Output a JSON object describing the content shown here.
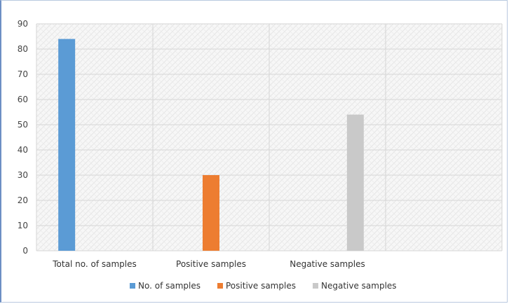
{
  "chart_data": {
    "type": "bar",
    "categories": [
      "Total no. of samples",
      "Positive samples",
      "Negative samples",
      ""
    ],
    "series": [
      {
        "name": "No. of samples",
        "values": [
          84,
          null,
          null,
          null
        ],
        "color": "#5b9bd5"
      },
      {
        "name": "Positive samples",
        "values": [
          null,
          30,
          null,
          null
        ],
        "color": "#ed7d31"
      },
      {
        "name": "Negative samples",
        "values": [
          null,
          null,
          54,
          null
        ],
        "color": "#c9c9c9"
      }
    ],
    "ylim": [
      0,
      90
    ],
    "yticks": [
      0,
      10,
      20,
      30,
      40,
      50,
      60,
      70,
      80,
      90
    ],
    "grid": true,
    "legend_position": "bottom"
  }
}
